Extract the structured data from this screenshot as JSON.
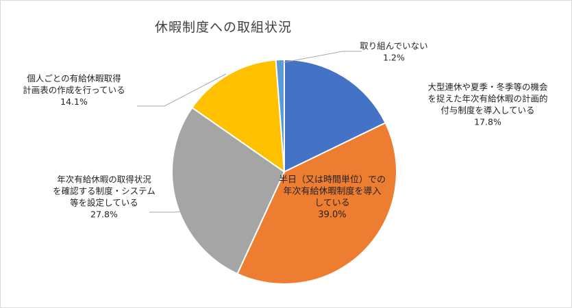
{
  "chart_data": {
    "type": "pie",
    "title": "休暇制度への取組状況",
    "start_angle_deg": 0,
    "direction": "clockwise",
    "slices": [
      {
        "label_lines": [
          "大型連休や夏季・冬季等の機会",
          "を捉えた年次有給休暇の計画的",
          "付与制度を導入している"
        ],
        "value_label": "17.8%",
        "value": 17.8,
        "color": "#4472C4"
      },
      {
        "label_lines": [
          "半日（又は時間単位）での",
          "年次有給休暇制度を導入",
          "している"
        ],
        "value_label": "39.0%",
        "value": 39.0,
        "color": "#ED7D31"
      },
      {
        "label_lines": [
          "年次有給休暇の取得状況",
          "を確認する制度・システム",
          "等を設定している"
        ],
        "value_label": "27.8%",
        "value": 27.8,
        "color": "#A5A5A5"
      },
      {
        "label_lines": [
          "個人ごとの有給休暇取得",
          "計画表の作成を行っている"
        ],
        "value_label": "14.1%",
        "value": 14.1,
        "color": "#FFC000"
      },
      {
        "label_lines": [
          "取り組んでいない"
        ],
        "value_label": "1.2%",
        "value": 1.2,
        "color": "#5B9BD5"
      }
    ]
  }
}
